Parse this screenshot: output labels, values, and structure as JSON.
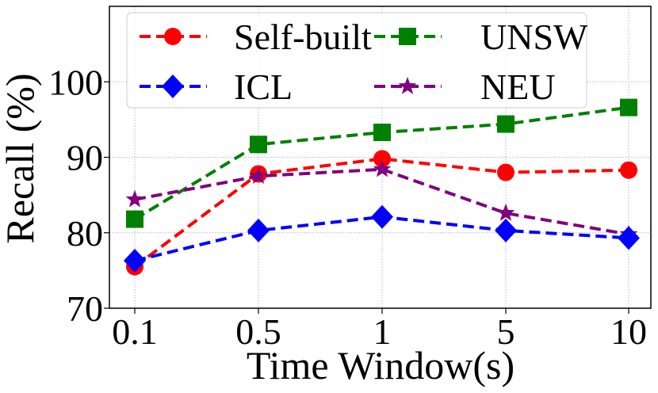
{
  "chart_data": {
    "type": "line",
    "xlabel": "Time Window(s)",
    "ylabel": "Recall (%)",
    "categories": [
      "0.1",
      "0.5",
      "1",
      "5",
      "10"
    ],
    "y_ticks": [
      "70",
      "80",
      "90",
      "100"
    ],
    "ylim": [
      70,
      110
    ],
    "grid": true,
    "legend_position": "top",
    "series": [
      {
        "name": "Self-built",
        "color": "#ff0000",
        "marker": "circle",
        "values": [
          75.5,
          87.8,
          89.8,
          88.0,
          88.3
        ]
      },
      {
        "name": "UNSW",
        "color": "#008000",
        "marker": "square",
        "values": [
          81.8,
          91.7,
          93.3,
          94.4,
          96.6
        ]
      },
      {
        "name": "ICL",
        "color": "#0000ff",
        "marker": "diamond",
        "values": [
          76.3,
          80.3,
          82.1,
          80.3,
          79.3
        ]
      },
      {
        "name": "NEU",
        "color": "#800080",
        "marker": "star",
        "values": [
          84.4,
          87.5,
          88.4,
          82.6,
          79.8
        ]
      }
    ]
  }
}
